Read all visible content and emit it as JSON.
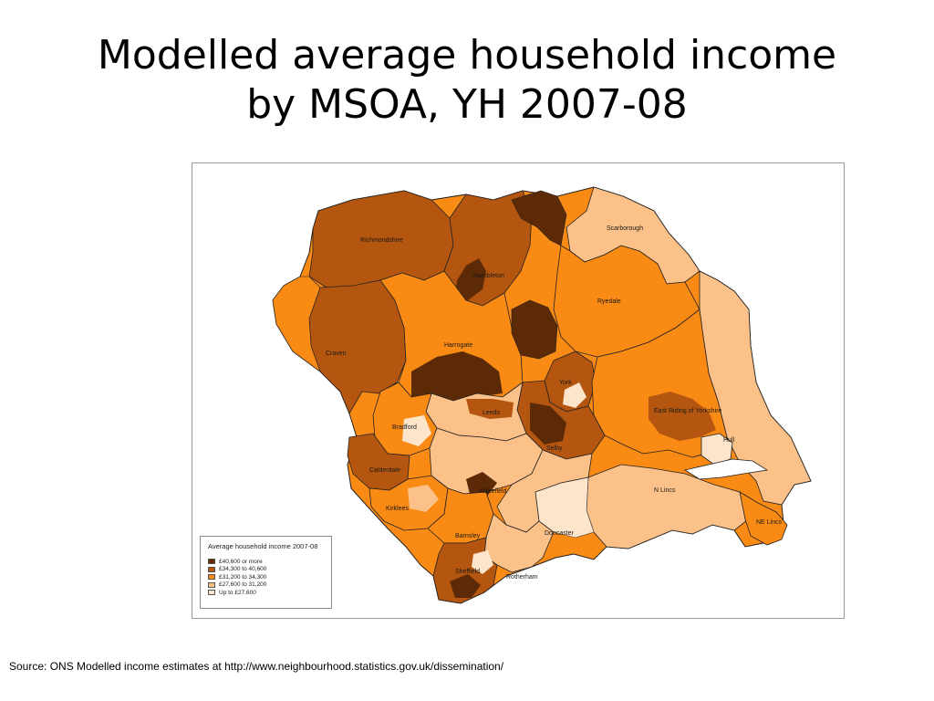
{
  "title": {
    "line1": "Modelled average household income",
    "line2": "by MSOA, YH 2007-08"
  },
  "map": {
    "labels": {
      "richmondshire": "Richmondshire",
      "hambleton": "Hambleton",
      "scarborough": "Scarborough",
      "ryedale": "Ryedale",
      "harrogate": "Harrogate",
      "craven": "Craven",
      "york": "York",
      "leeds": "Leeds",
      "east_riding": "East Riding of Yorkshire",
      "bradford": "Bradford",
      "hull": "Hull",
      "selby": "Selby",
      "calderdale": "Calderdale",
      "n_lincs": "N Lincs",
      "wakefield": "Wakefield",
      "kirklees": "Kirklees",
      "ne_lincs": "NE Lincs",
      "doncaster": "Doncaster",
      "barnsley": "Barnsley",
      "sheffield": "Sheffield",
      "rotherham": "Rotherham"
    },
    "colors": {
      "band1": "#5c2a06",
      "band2": "#b4560f",
      "band3": "#f98a14",
      "band4": "#fbc189",
      "band5": "#fde5cc",
      "boundary": "#222222"
    }
  },
  "legend": {
    "title": "Average household income 2007-08",
    "items": [
      {
        "label": "£40,600 or more",
        "color": "#5c2a06"
      },
      {
        "label": "£34,300 to 40,600",
        "color": "#b4560f"
      },
      {
        "label": "£31,200 to 34,300",
        "color": "#f98a14"
      },
      {
        "label": "£27,600 to 31,200",
        "color": "#fbc189"
      },
      {
        "label": "Up to £27,600",
        "color": "#fde5cc"
      }
    ]
  },
  "source": "Source: ONS Modelled income estimates at http://www.neighbourhood.statistics.gov.uk/dissemination/"
}
